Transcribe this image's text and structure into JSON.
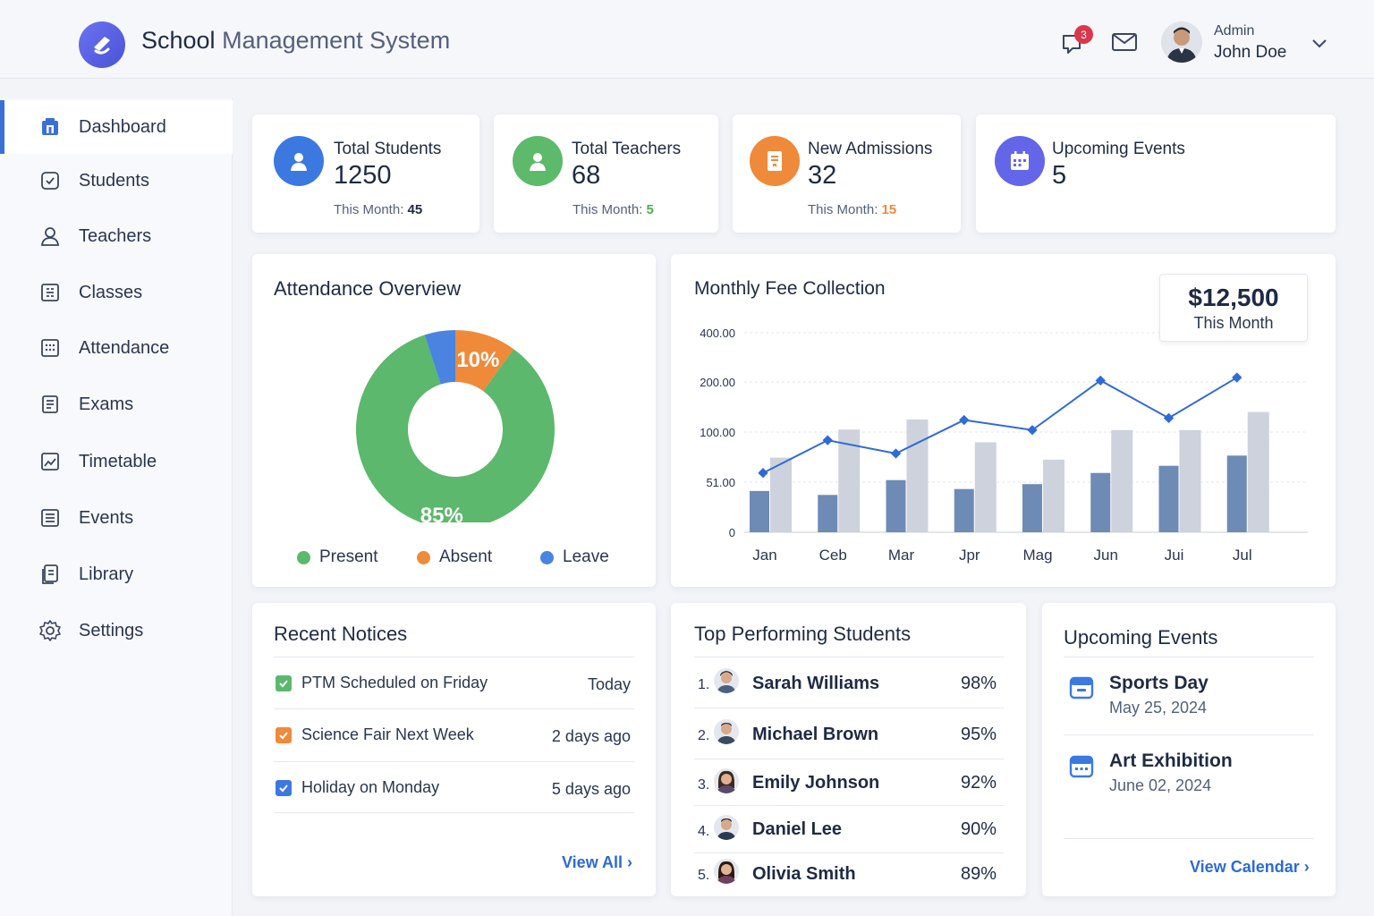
{
  "header": {
    "title_strong": "School",
    "title_light": "Management System",
    "notification_count": "3",
    "user_role": "Admin",
    "user_name": "John Doe",
    "icons": [
      "app-logo",
      "bell-icon",
      "mail-icon",
      "chevron-down-icon"
    ]
  },
  "sidebar": {
    "items": [
      {
        "label": "Dashboard",
        "icon": "dashboard-icon",
        "active": true
      },
      {
        "label": "Students",
        "icon": "student-icon"
      },
      {
        "label": "Teachers",
        "icon": "teacher-icon"
      },
      {
        "label": "Classes",
        "icon": "classes-icon"
      },
      {
        "label": "Attendance",
        "icon": "attendance-icon"
      },
      {
        "label": "Exams",
        "icon": "exams-icon"
      },
      {
        "label": "Timetable",
        "icon": "timetable-icon"
      },
      {
        "label": "Events",
        "icon": "events-icon"
      },
      {
        "label": "Library",
        "icon": "library-icon"
      },
      {
        "label": "Settings",
        "icon": "settings-icon"
      }
    ]
  },
  "stats": [
    {
      "label": "Total Students",
      "value": "1250",
      "month_prefix": "This Month:",
      "month_value": "45",
      "color": "#3b78e0",
      "month_color": "#1f2a44"
    },
    {
      "label": "Total Teachers",
      "value": "68",
      "month_prefix": "This Month:",
      "month_value": "5",
      "color": "#5cba6a",
      "month_color": "#4caf50"
    },
    {
      "label": "New Admissions",
      "value": "32",
      "month_prefix": "This Month:",
      "month_value": "15",
      "color": "#ef8a3a",
      "month_color": "#ef8a3a"
    },
    {
      "label": "Upcoming Events",
      "value": "5",
      "color": "#6366e8"
    }
  ],
  "attendance": {
    "title": "Attendance Overview",
    "chart_data": {
      "type": "pie",
      "categories": [
        "Present",
        "Absent",
        "Leave"
      ],
      "values": [
        85,
        10,
        5
      ],
      "labels": [
        "85%",
        "10%",
        ""
      ],
      "colors": [
        "#5cb86c",
        "#ef8a3a",
        "#4a84e0"
      ]
    }
  },
  "fee": {
    "title": "Monthly Fee Collection",
    "amount": "$12,500",
    "amount_sub": "This Month",
    "chart_data": {
      "type": "bar",
      "categories": [
        "Jan",
        "Ceb",
        "Mar",
        "Jpr",
        "Mag",
        "Jun",
        "Jui",
        "Jul"
      ],
      "y_ticks": [
        "0",
        "51.00",
        "100.00",
        "200.00",
        "400.00"
      ],
      "series": [
        {
          "type": "bar",
          "values": [
            42,
            38,
            53,
            44,
            49,
            60,
            67,
            77
          ],
          "color": "#6e8bb5"
        },
        {
          "type": "bar",
          "values": [
            75,
            105,
            125,
            90,
            73,
            104,
            104,
            140
          ],
          "color": "#cdd2dc"
        },
        {
          "type": "line",
          "values": [
            60,
            92,
            79,
            124,
            104,
            206,
            128,
            218
          ],
          "color": "#2f6ad8"
        }
      ]
    }
  },
  "notices": {
    "title": "Recent Notices",
    "items": [
      {
        "text": "PTM Scheduled on Friday",
        "time": "Today",
        "color": "#5cb86c"
      },
      {
        "text": "Science Fair Next Week",
        "time": "2 days ago",
        "color": "#ef8a3a"
      },
      {
        "text": "Holiday on Monday",
        "time": "5 days ago",
        "color": "#3b78e0"
      }
    ],
    "view_all": "View All"
  },
  "top_students": {
    "title": "Top Performing Students",
    "items": [
      {
        "rank": "1.",
        "name": "Sarah Williams",
        "pct": "98%"
      },
      {
        "rank": "2.",
        "name": "Michael Brown",
        "pct": "95%"
      },
      {
        "rank": "3.",
        "name": "Emily Johnson",
        "pct": "92%"
      },
      {
        "rank": "4.",
        "name": "Daniel Lee",
        "pct": "90%"
      },
      {
        "rank": "5.",
        "name": "Olivia Smith",
        "pct": "89%"
      }
    ]
  },
  "events": {
    "title": "Upcoming Events",
    "items": [
      {
        "name": "Sports Day",
        "date": "May 25, 2024"
      },
      {
        "name": "Art Exhibition",
        "date": "June 02, 2024"
      }
    ],
    "view_calendar": "View Calendar"
  }
}
